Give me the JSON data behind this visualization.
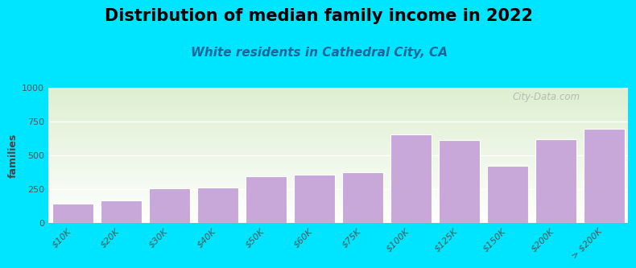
{
  "title": "Distribution of median family income in 2022",
  "subtitle": "White residents in Cathedral City, CA",
  "categories": [
    "$10K",
    "$20K",
    "$30K",
    "$40K",
    "$50K",
    "$60K",
    "$75K",
    "$100K",
    "$125K",
    "$150K",
    "$200K",
    "> $200K"
  ],
  "values": [
    140,
    165,
    255,
    260,
    345,
    355,
    375,
    655,
    610,
    420,
    615,
    695
  ],
  "bar_color": "#c8a8d8",
  "bar_edge_color": "white",
  "background_outer": "#00e5ff",
  "plot_bg_top": "#ddefd0",
  "plot_bg_bottom": "#ffffff",
  "ylabel": "families",
  "ylim": [
    0,
    1000
  ],
  "yticks": [
    0,
    250,
    500,
    750,
    1000
  ],
  "title_fontsize": 15,
  "subtitle_fontsize": 11,
  "tick_fontsize": 8,
  "ylabel_fontsize": 9,
  "watermark": "City-Data.com",
  "title_color": "black",
  "subtitle_color": "#1a6699",
  "tick_color": "#555555"
}
